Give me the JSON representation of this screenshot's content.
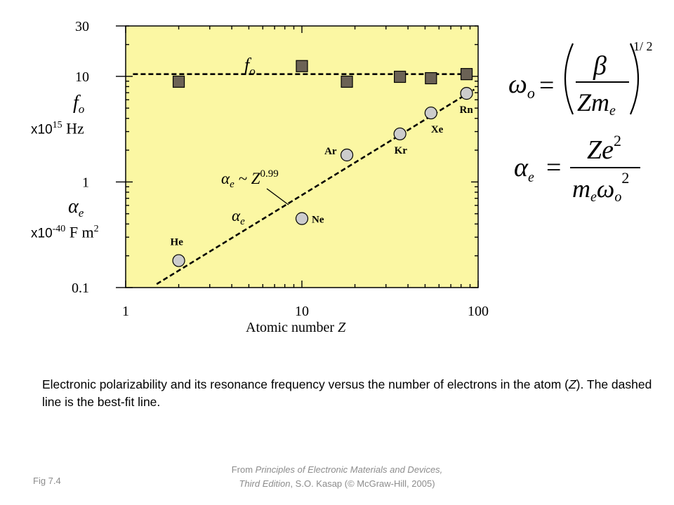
{
  "chart_data": {
    "type": "scatter",
    "xlabel": "Atomic number",
    "xlabel_var": "Z",
    "x_scale": "log",
    "y_scale": "log",
    "xlim": [
      1,
      100
    ],
    "ylim": [
      0.1,
      30
    ],
    "x_ticks": [
      1,
      10,
      100
    ],
    "x_tick_labels": [
      "1",
      "10",
      "100"
    ],
    "y_ticks": [
      0.1,
      1,
      10,
      30
    ],
    "y_tick_labels": [
      "0.1",
      "1",
      "10",
      "30"
    ],
    "y_axis_labels": {
      "fo_symbol": "f",
      "fo_sub": "o",
      "fo_units_prefix": "x10",
      "fo_units_exp": "15",
      "fo_units_suffix": " Hz",
      "alpha_symbol": "α",
      "alpha_sub": "e",
      "alpha_units_prefix": "x10",
      "alpha_units_exp": "-40",
      "alpha_units_suffix": " F m",
      "alpha_units_exp2": "2"
    },
    "background_color": "#fbf7a3",
    "series": [
      {
        "name": "fo",
        "marker": "square",
        "color": "#6b6255",
        "points": [
          {
            "x": 2,
            "y": 8.9
          },
          {
            "x": 10,
            "y": 12.5
          },
          {
            "x": 18,
            "y": 8.9
          },
          {
            "x": 36,
            "y": 9.9
          },
          {
            "x": 54,
            "y": 9.6
          },
          {
            "x": 86,
            "y": 10.5
          }
        ]
      },
      {
        "name": "alpha_e",
        "marker": "circle",
        "color": "#cccccc",
        "points": [
          {
            "x": 2,
            "y": 0.18,
            "label": "He"
          },
          {
            "x": 10,
            "y": 0.45,
            "label": "Ne"
          },
          {
            "x": 18,
            "y": 1.8,
            "label": "Ar"
          },
          {
            "x": 36,
            "y": 2.85,
            "label": "Kr"
          },
          {
            "x": 54,
            "y": 4.5,
            "label": "Xe"
          },
          {
            "x": 86,
            "y": 6.9,
            "label": "Rn"
          }
        ]
      }
    ],
    "fit_lines": [
      {
        "series": "fo",
        "style": "dashed",
        "x": [
          1.1,
          90
        ],
        "y": [
          10.5,
          10.5
        ]
      },
      {
        "series": "alpha_e",
        "style": "dashed",
        "x": [
          1.5,
          95
        ],
        "y": [
          0.108,
          7.5
        ]
      }
    ],
    "annotations": {
      "fo_symbol": "f",
      "fo_sub": "o",
      "alpha_symbol": "α",
      "alpha_sub": "e",
      "fit_tilde": " ~ Z",
      "fit_exp": "0.99"
    }
  },
  "equations": {
    "omega_symbol": "ω",
    "omega_sub": "o",
    "equals": "=",
    "beta": "β",
    "Zm": "Zm",
    "m_sub": "e",
    "half_power": "1/ 2",
    "alpha_symbol": "α",
    "alpha_sub": "e",
    "Ze": "Ze",
    "Ze_exp": "2",
    "m": "m",
    "m_e_sub": "e",
    "omega2": "ω",
    "omega2_sub": "o",
    "omega2_exp": "2"
  },
  "caption": {
    "text_before": "Electronic polarizability and its resonance frequency versus the number of electrons in the atom (",
    "text_var": "Z",
    "text_after": ").  The dashed line is the best-fit line."
  },
  "footer": {
    "fig_label": "Fig 7.4",
    "source_prefix": "From ",
    "source_title": "Principles of Electronic Materials and Devices, Third Edition",
    "source_suffix": ", S.O. Kasap (© McGraw-Hill, 2005)"
  }
}
